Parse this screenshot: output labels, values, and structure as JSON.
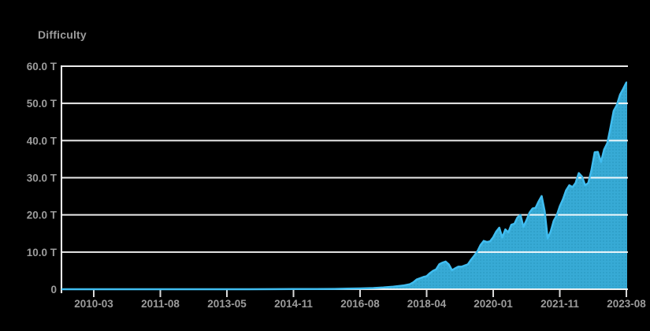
{
  "title": "Difficulty",
  "colors": {
    "background": "#000000",
    "area_fill": "#37aad5",
    "area_dot": "#2b9ac2",
    "line": "#40bdf0",
    "grid": "#ffffff",
    "axis": "#ffffff",
    "tick": "#d9d9d9",
    "label": "#9c9c9c"
  },
  "chart_data": {
    "type": "area",
    "title": "Difficulty",
    "unit": "T",
    "ylim": [
      0,
      60
    ],
    "grid": true,
    "legend": "none",
    "y_ticks": [
      "60.0 T",
      "50.0 T",
      "40.0 T",
      "30.0 T",
      "20.0 T",
      "10.0 T",
      "0"
    ],
    "x_ticks": [
      "2010-03",
      "2011-08",
      "2013-05",
      "2014-11",
      "2016-08",
      "2018-04",
      "2020-01",
      "2021-11",
      "2023-08"
    ],
    "x_range": [
      "2009-06",
      "2023-08"
    ],
    "points": [
      [
        "2009-06",
        0
      ],
      [
        "2010-03",
        0
      ],
      [
        "2011-08",
        0
      ],
      [
        "2012-06",
        0
      ],
      [
        "2013-05",
        1e-05
      ],
      [
        "2013-11",
        0.0005
      ],
      [
        "2014-06",
        0.013
      ],
      [
        "2014-11",
        0.04
      ],
      [
        "2015-06",
        0.049
      ],
      [
        "2015-12",
        0.079
      ],
      [
        "2016-04",
        0.17
      ],
      [
        "2016-08",
        0.22
      ],
      [
        "2016-12",
        0.31
      ],
      [
        "2017-03",
        0.46
      ],
      [
        "2017-06",
        0.68
      ],
      [
        "2017-09",
        1.0
      ],
      [
        "2017-11",
        1.36
      ],
      [
        "2017-12",
        1.87
      ],
      [
        "2018-01",
        2.6
      ],
      [
        "2018-03",
        3.29
      ],
      [
        "2018-04",
        3.51
      ],
      [
        "2018-05",
        4.31
      ],
      [
        "2018-06",
        4.94
      ],
      [
        "2018-07",
        5.36
      ],
      [
        "2018-08",
        6.73
      ],
      [
        "2018-09",
        7.15
      ],
      [
        "2018-10",
        7.45
      ],
      [
        "2018-11",
        6.65
      ],
      [
        "2018-12",
        5.11
      ],
      [
        "2019-01",
        5.62
      ],
      [
        "2019-02",
        6.06
      ],
      [
        "2019-03",
        6.07
      ],
      [
        "2019-04",
        6.38
      ],
      [
        "2019-05",
        6.7
      ],
      [
        "2019-06",
        7.93
      ],
      [
        "2019-07",
        9.01
      ],
      [
        "2019-08",
        10.18
      ],
      [
        "2019-09",
        11.89
      ],
      [
        "2019-10",
        13.0
      ],
      [
        "2019-11",
        12.7
      ],
      [
        "2019-12",
        12.9
      ],
      [
        "2020-01",
        14.0
      ],
      [
        "2020-02",
        15.5
      ],
      [
        "2020-03",
        16.55
      ],
      [
        "2020-04",
        13.9
      ],
      [
        "2020-05",
        16.1
      ],
      [
        "2020-06",
        15.3
      ],
      [
        "2020-07",
        17.35
      ],
      [
        "2020-08",
        17.6
      ],
      [
        "2020-09",
        19.3
      ],
      [
        "2020-10",
        19.97
      ],
      [
        "2020-11",
        16.8
      ],
      [
        "2020-12",
        18.6
      ],
      [
        "2021-01",
        20.6
      ],
      [
        "2021-02",
        21.7
      ],
      [
        "2021-03",
        21.9
      ],
      [
        "2021-04",
        23.6
      ],
      [
        "2021-05",
        25.05
      ],
      [
        "2021-06",
        21.0
      ],
      [
        "2021-07",
        13.67
      ],
      [
        "2021-08",
        15.56
      ],
      [
        "2021-09",
        18.4
      ],
      [
        "2021-10",
        19.9
      ],
      [
        "2021-11",
        22.3
      ],
      [
        "2021-12",
        24.2
      ],
      [
        "2022-01",
        26.6
      ],
      [
        "2022-02",
        27.97
      ],
      [
        "2022-03",
        27.45
      ],
      [
        "2022-04",
        28.6
      ],
      [
        "2022-05",
        31.25
      ],
      [
        "2022-06",
        30.3
      ],
      [
        "2022-07",
        27.97
      ],
      [
        "2022-08",
        28.6
      ],
      [
        "2022-09",
        32.05
      ],
      [
        "2022-10",
        36.84
      ],
      [
        "2022-11",
        36.95
      ],
      [
        "2022-12",
        34.24
      ],
      [
        "2023-01",
        37.59
      ],
      [
        "2023-02",
        39.35
      ],
      [
        "2023-03",
        43.55
      ],
      [
        "2023-04",
        48.0
      ],
      [
        "2023-05",
        49.55
      ],
      [
        "2023-06",
        52.35
      ],
      [
        "2023-07",
        53.91
      ],
      [
        "2023-08",
        55.62
      ]
    ]
  }
}
